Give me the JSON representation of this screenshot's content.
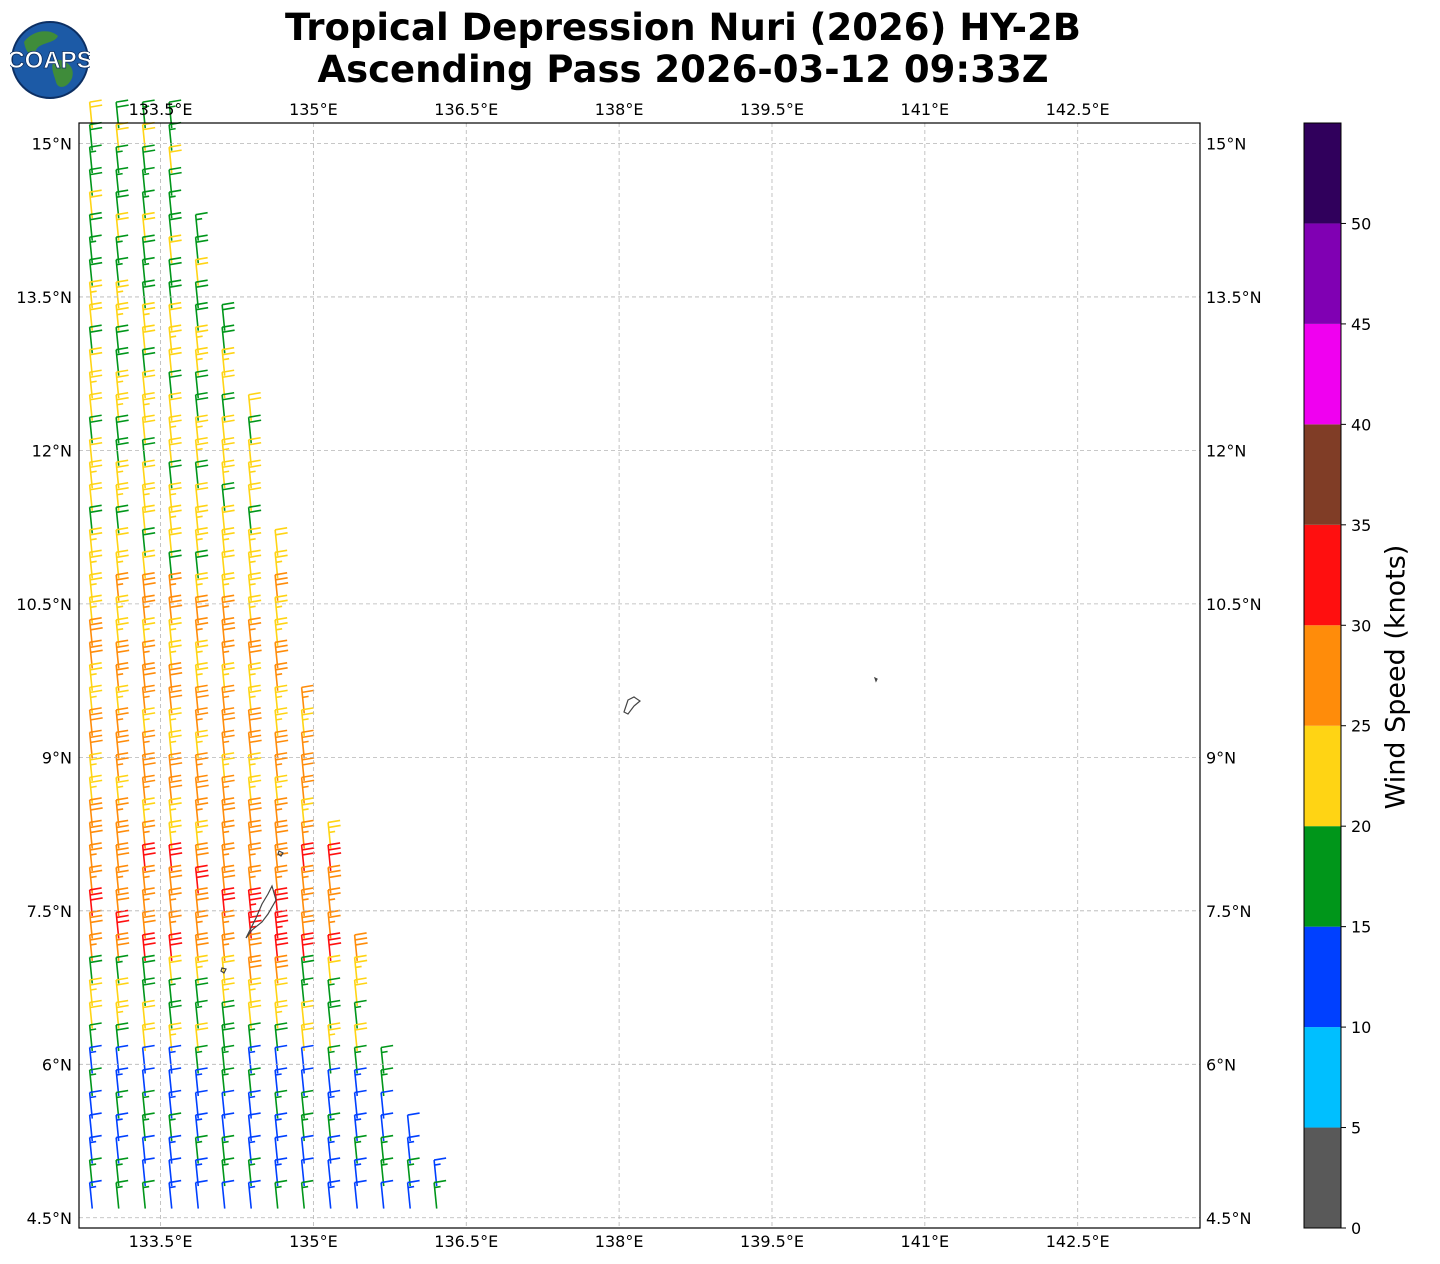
{
  "title": {
    "line1": "Tropical Depression Nuri (2026) HY-2B",
    "line2": "Ascending Pass 2026-03-12 09:33Z"
  },
  "logo": {
    "text": "COAPS",
    "icon": "globe-icon"
  },
  "map": {
    "lon_range": [
      132.7,
      143.7
    ],
    "lat_range": [
      4.4,
      15.2
    ],
    "lon_ticks": [
      133.5,
      135,
      136.5,
      138,
      139.5,
      141,
      142.5
    ],
    "lat_ticks": [
      4.5,
      6,
      7.5,
      9,
      10.5,
      12,
      13.5,
      15
    ],
    "lon_tick_labels": [
      "133.5°E",
      "135°E",
      "136.5°E",
      "138°E",
      "139.5°E",
      "141°E",
      "142.5°E"
    ],
    "lat_tick_labels": [
      "4.5°N",
      "6°N",
      "7.5°N",
      "9°N",
      "10.5°N",
      "12°N",
      "13.5°N",
      "15°N"
    ],
    "gridlines": true,
    "coastline_color": "#444444"
  },
  "colorbar": {
    "label": "Wind Speed (knots)",
    "ticks": [
      0,
      5,
      10,
      15,
      20,
      25,
      30,
      35,
      40,
      45,
      50
    ],
    "bands": [
      {
        "min": 0,
        "max": 5,
        "color": "#595959"
      },
      {
        "min": 5,
        "max": 10,
        "color": "#00bfff"
      },
      {
        "min": 10,
        "max": 15,
        "color": "#0040ff"
      },
      {
        "min": 15,
        "max": 20,
        "color": "#00961a"
      },
      {
        "min": 20,
        "max": 25,
        "color": "#ffd414"
      },
      {
        "min": 25,
        "max": 30,
        "color": "#ff8c0a"
      },
      {
        "min": 30,
        "max": 35,
        "color": "#ff0f0f"
      },
      {
        "min": 35,
        "max": 40,
        "color": "#803d26"
      },
      {
        "min": 40,
        "max": 45,
        "color": "#f000f0"
      },
      {
        "min": 45,
        "max": 50,
        "color": "#8000b3"
      },
      {
        "min": 50,
        "max": 55,
        "color": "#30005c"
      }
    ]
  },
  "wind_barbs": {
    "direction_from_deg": 250,
    "speed_zones": [
      {
        "lat_min": 13.5,
        "lat_max": 15.2,
        "speed_knots": 18
      },
      {
        "lat_min": 11.8,
        "lat_max": 13.5,
        "speed_knots": 21
      },
      {
        "lat_min": 10.6,
        "lat_max": 11.8,
        "speed_knots": 22
      },
      {
        "lat_min": 8.0,
        "lat_max": 10.6,
        "speed_knots": 26
      },
      {
        "lat_min": 6.9,
        "lat_max": 8.0,
        "speed_knots": 28
      },
      {
        "lat_min": 6.0,
        "lat_max": 6.9,
        "speed_knots": 20
      },
      {
        "lat_min": 4.4,
        "lat_max": 6.0,
        "speed_knots": 14
      }
    ],
    "swath_east_edge": [
      {
        "lat": 15.2,
        "lon": 133.6
      },
      {
        "lat": 12.0,
        "lon": 134.5
      },
      {
        "lat": 9.0,
        "lon": 135.0
      },
      {
        "lat": 7.5,
        "lon": 135.3
      },
      {
        "lat": 6.0,
        "lon": 135.7
      },
      {
        "lat": 4.4,
        "lon": 136.4
      }
    ],
    "max_speed_center": {
      "lat": 7.1,
      "lon": 134.5,
      "speed_knots": 31
    }
  }
}
